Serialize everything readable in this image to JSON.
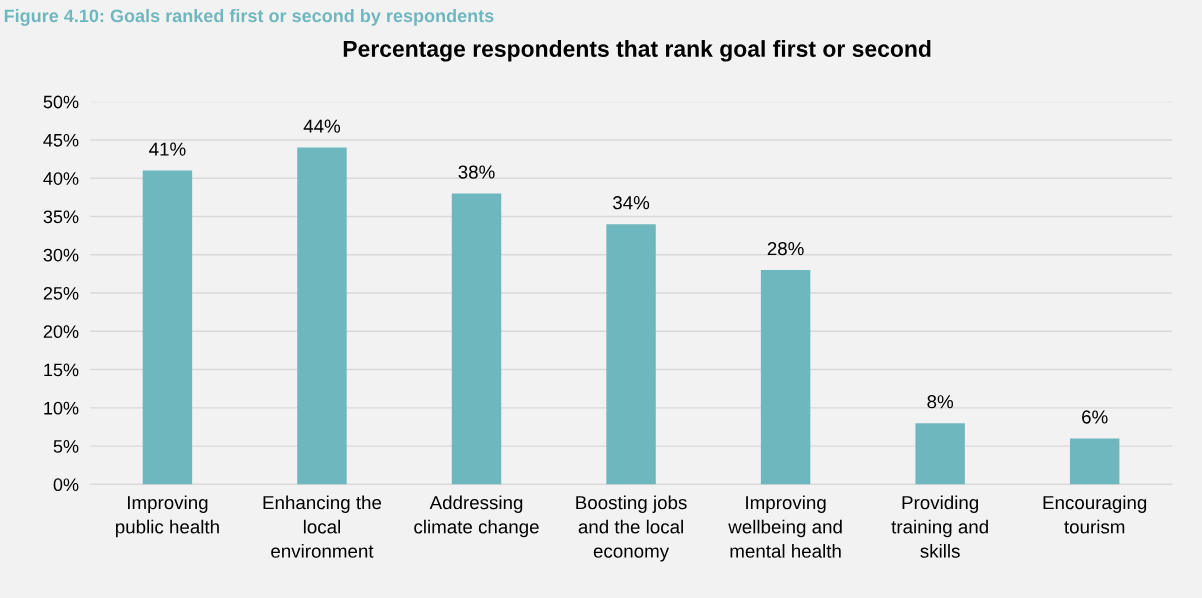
{
  "chart_data": {
    "type": "bar",
    "title": "Percentage respondents that rank goal first or second",
    "annotations": [
      "Figure 4.10: Goals ranked first or second by respondents"
    ],
    "categories": [
      "Improving\npublic health",
      "Enhancing the\nlocal\nenvironment",
      "Addressing\nclimate change",
      "Boosting jobs\nand the local\neconomy",
      "Improving\nwellbeing and\nmental health",
      "Providing\ntraining and\nskills",
      "Encouraging\ntourism"
    ],
    "values": [
      41,
      44,
      38,
      34,
      28,
      8,
      6
    ],
    "color": "#6fb7bf",
    "ylim": [
      0,
      50
    ],
    "yticks": [
      {
        "value": 0,
        "label": "0%"
      },
      {
        "value": 5,
        "label": "5%"
      },
      {
        "value": 10,
        "label": "10%"
      },
      {
        "value": 15,
        "label": "15%"
      },
      {
        "value": 20,
        "label": "20%"
      },
      {
        "value": 25,
        "label": "25%"
      },
      {
        "value": 30,
        "label": "30%"
      },
      {
        "value": 35,
        "label": "35%"
      },
      {
        "value": 40,
        "label": "40%"
      },
      {
        "value": 45,
        "label": "45%"
      },
      {
        "value": 50,
        "label": "50%"
      }
    ],
    "value_labels": [
      "41%",
      "44%",
      "38%",
      "34%",
      "28%",
      "8%",
      "6%"
    ],
    "grid": "y",
    "legend": false
  }
}
